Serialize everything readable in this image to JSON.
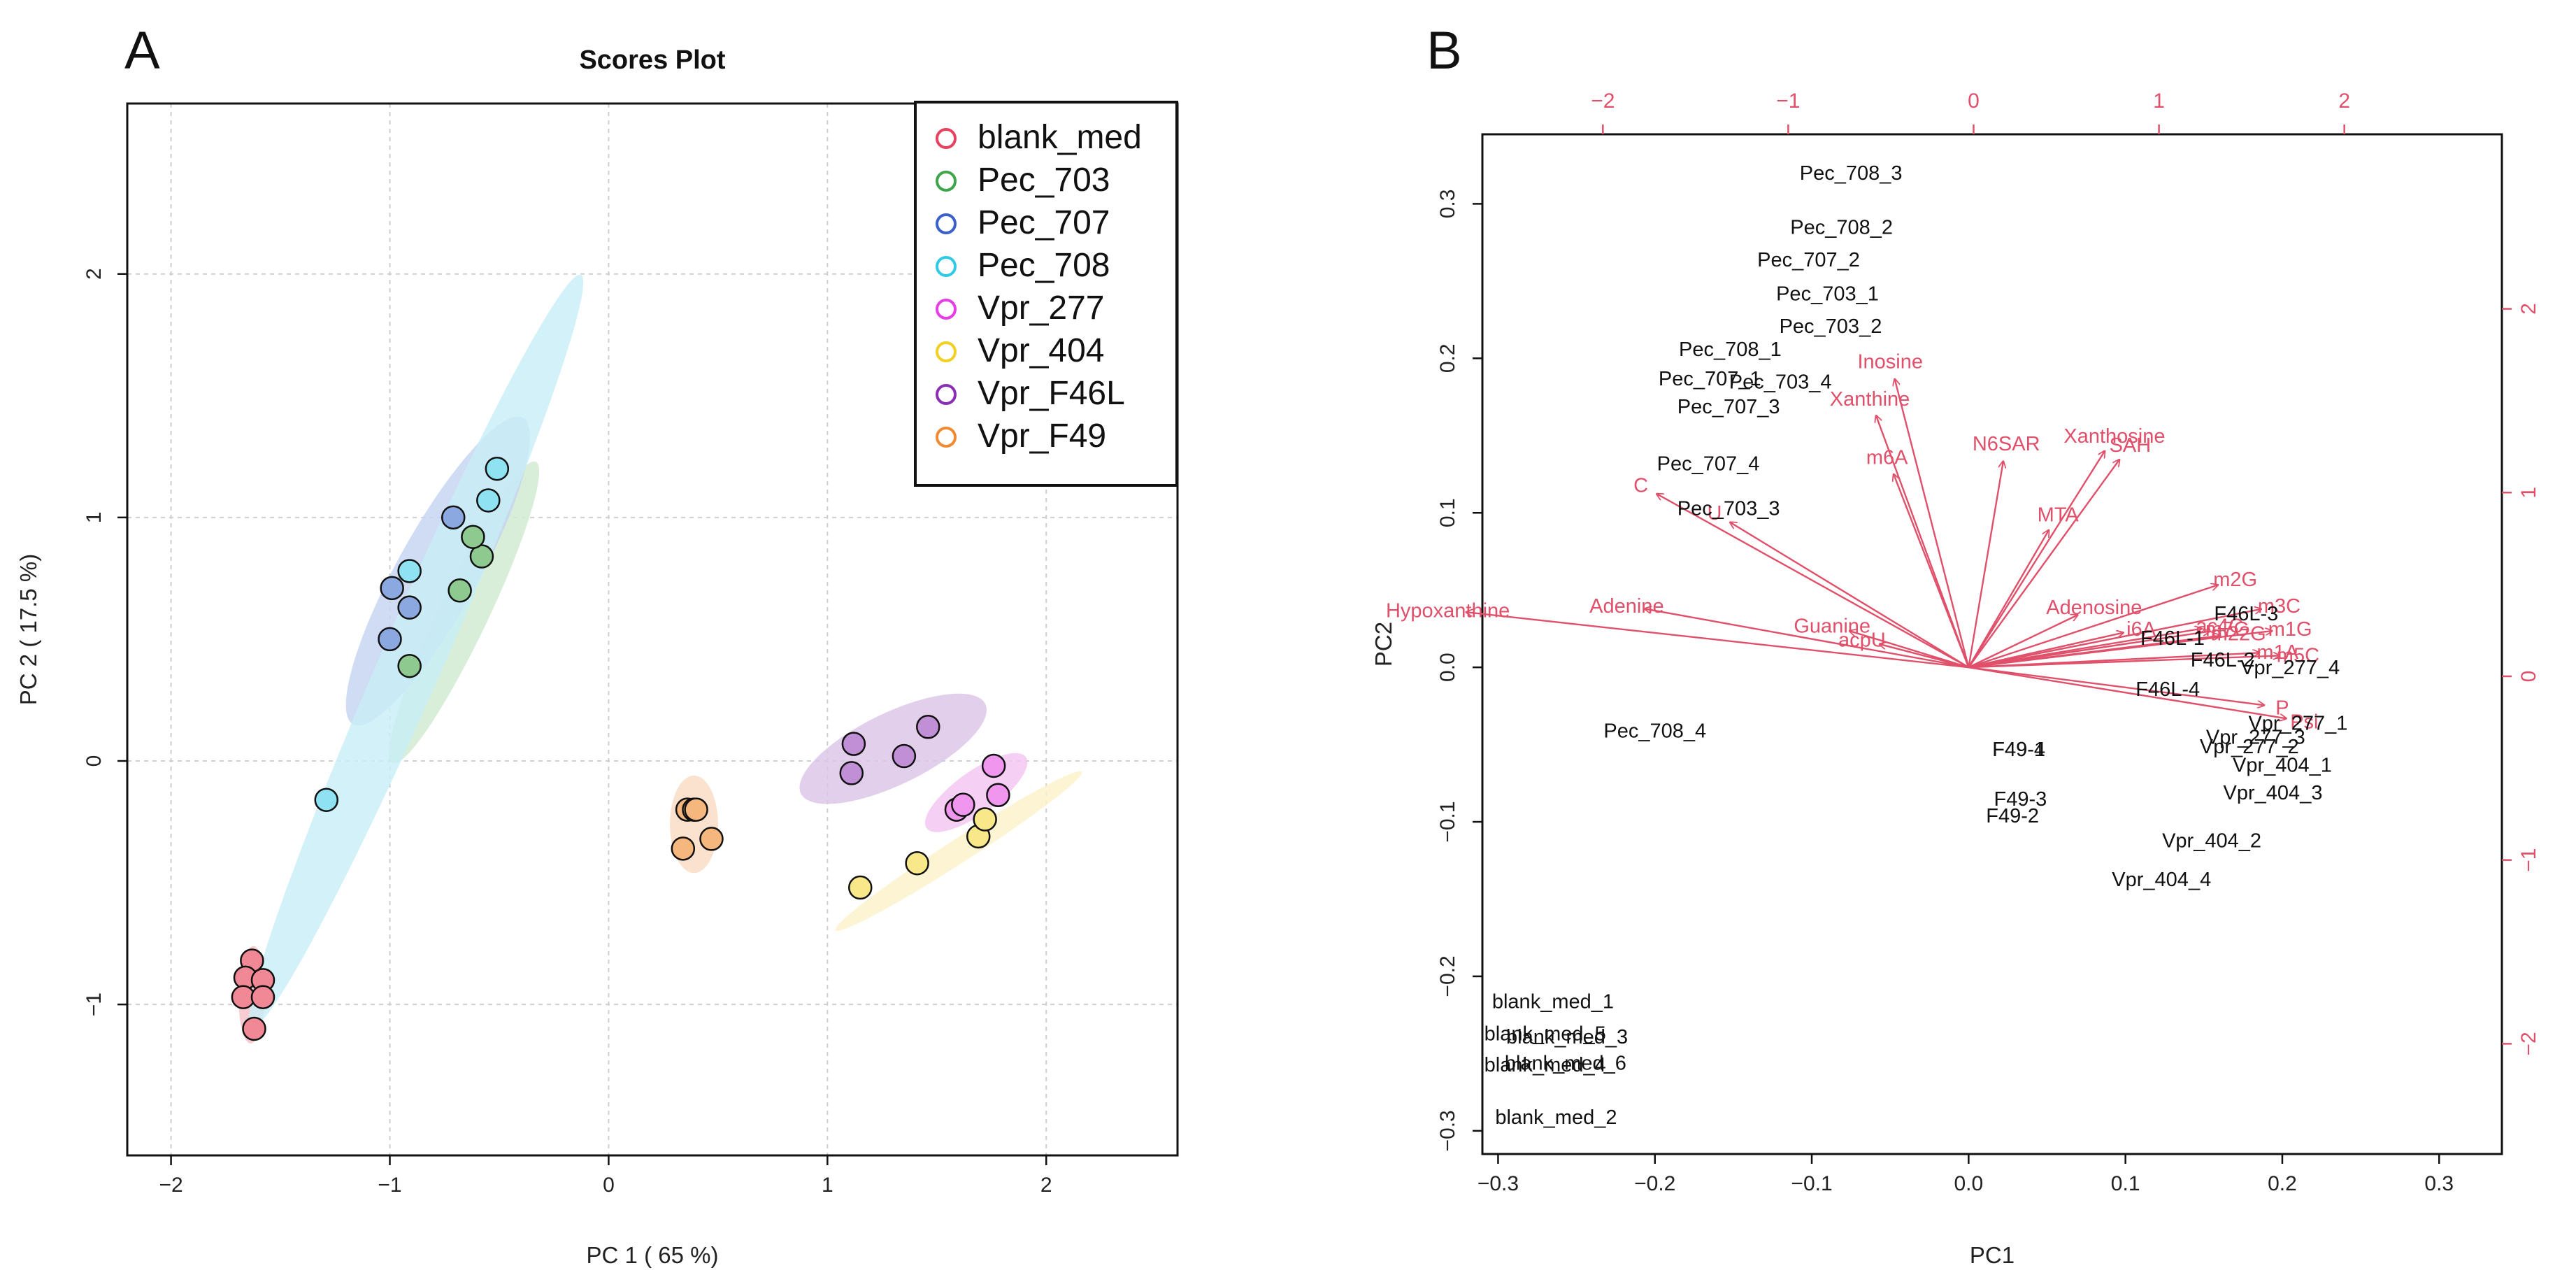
{
  "panels": {
    "a_label": "A",
    "b_label": "B"
  },
  "chart_data": [
    {
      "type": "scatter",
      "title": "Scores Plot",
      "xlabel": "PC 1 ( 65 %)",
      "ylabel": "PC 2 ( 17.5 %)",
      "xlim": [
        -2.2,
        2.6
      ],
      "ylim": [
        -1.62,
        2.7
      ],
      "xticks": [
        -2,
        -1,
        0,
        1,
        2
      ],
      "yticks": [
        -1,
        0,
        1,
        2
      ],
      "grid": true,
      "legend_position": "top-right",
      "series": [
        {
          "name": "blank_med",
          "color": "#e8415f",
          "fill": "#f08896",
          "ellipse_fill": "#f4c2c8",
          "ellipse": {
            "center": [
              -1.63,
              -0.96
            ],
            "semi_major": 0.2,
            "semi_minor": 0.06,
            "angle_deg": 88
          },
          "points": [
            [
              -1.63,
              -0.82
            ],
            [
              -1.66,
              -0.89
            ],
            [
              -1.58,
              -0.9
            ],
            [
              -1.67,
              -0.97
            ],
            [
              -1.58,
              -0.97
            ],
            [
              -1.62,
              -1.1
            ]
          ]
        },
        {
          "name": "Pec_703",
          "color": "#3ea54a",
          "fill": "#8ec98f",
          "ellipse_fill": "#cfeacf",
          "ellipse": {
            "center": [
              -0.66,
              0.61
            ],
            "semi_major": 0.7,
            "semi_minor": 0.11,
            "angle_deg": 62
          },
          "points": [
            [
              -0.91,
              0.39
            ],
            [
              -0.68,
              0.7
            ],
            [
              -0.58,
              0.84
            ],
            [
              -0.62,
              0.92
            ]
          ]
        },
        {
          "name": "Pec_707",
          "color": "#3a60cc",
          "fill": "#8ba8e0",
          "ellipse_fill": "#c5d4f1",
          "ellipse": {
            "center": [
              -0.78,
              0.78
            ],
            "semi_major": 0.74,
            "semi_minor": 0.18,
            "angle_deg": 58
          },
          "points": [
            [
              -1.0,
              0.5
            ],
            [
              -0.99,
              0.71
            ],
            [
              -0.91,
              0.63
            ],
            [
              -0.71,
              1.0
            ]
          ]
        },
        {
          "name": "Pec_708",
          "color": "#30c9e6",
          "fill": "#8ee2f2",
          "ellipse_fill": "#c8eef7",
          "ellipse": {
            "center": [
              -0.88,
              0.45
            ],
            "semi_major": 1.72,
            "semi_minor": 0.14,
            "angle_deg": 64
          },
          "points": [
            [
              -1.29,
              -0.16
            ],
            [
              -0.91,
              0.78
            ],
            [
              -0.55,
              1.07
            ],
            [
              -0.51,
              1.2
            ]
          ]
        },
        {
          "name": "Vpr_277",
          "color": "#e63de6",
          "fill": "#f096ee",
          "ellipse_fill": "#f3c6f1",
          "ellipse": {
            "center": [
              1.68,
              -0.13
            ],
            "semi_major": 0.27,
            "semi_minor": 0.09,
            "angle_deg": 32
          },
          "points": [
            [
              1.59,
              -0.2
            ],
            [
              1.62,
              -0.18
            ],
            [
              1.76,
              -0.02
            ],
            [
              1.78,
              -0.14
            ]
          ]
        },
        {
          "name": "Vpr_404",
          "color": "#f2d020",
          "fill": "#f8e88a",
          "ellipse_fill": "#fbf1c8",
          "ellipse": {
            "center": [
              1.6,
              -0.37
            ],
            "semi_major": 0.65,
            "semi_minor": 0.05,
            "angle_deg": 30
          },
          "points": [
            [
              1.15,
              -0.52
            ],
            [
              1.41,
              -0.42
            ],
            [
              1.69,
              -0.31
            ],
            [
              1.72,
              -0.24
            ]
          ]
        },
        {
          "name": "Vpr_F46L",
          "color": "#8a2fb5",
          "fill": "#c08fd6",
          "ellipse_fill": "#dcc5e8",
          "ellipse": {
            "center": [
              1.3,
              0.05
            ],
            "semi_major": 0.46,
            "semi_minor": 0.15,
            "angle_deg": 23
          },
          "points": [
            [
              1.11,
              -0.05
            ],
            [
              1.12,
              0.07
            ],
            [
              1.35,
              0.02
            ],
            [
              1.46,
              0.14
            ]
          ]
        },
        {
          "name": "Vpr_F49",
          "color": "#f08b32",
          "fill": "#f5b77e",
          "ellipse_fill": "#f9dcc4",
          "ellipse": {
            "center": [
              0.39,
              -0.26
            ],
            "semi_major": 0.2,
            "semi_minor": 0.11,
            "angle_deg": 90
          },
          "points": [
            [
              0.36,
              -0.2
            ],
            [
              0.39,
              -0.2
            ],
            [
              0.4,
              -0.2
            ],
            [
              0.34,
              -0.36
            ],
            [
              0.47,
              -0.32
            ]
          ]
        }
      ]
    },
    {
      "type": "biplot",
      "xlabel": "PC1",
      "ylabel": "PC2",
      "xlim": [
        -0.31,
        0.34
      ],
      "ylim": [
        -0.315,
        0.345
      ],
      "xticks": [
        -0.3,
        -0.2,
        -0.1,
        0.0,
        0.1,
        0.2,
        0.3
      ],
      "xtick_labels": [
        "−0.3",
        "−0.2",
        "−0.1",
        "0.0",
        "0.1",
        "0.2",
        "0.3"
      ],
      "yticks": [
        -0.3,
        -0.2,
        -0.1,
        0.0,
        0.1,
        0.2,
        0.3
      ],
      "ytick_labels": [
        "−0.3",
        "−0.2",
        "−0.1",
        "0.0",
        "0.1",
        "0.2",
        "0.3"
      ],
      "top_ticks": [
        -2,
        -1,
        0,
        1,
        2
      ],
      "top_tick_labels": [
        "−2",
        "−1",
        "0",
        "1",
        "2"
      ],
      "top_axis_range": [
        -2.65,
        2.85
      ],
      "right_ticks": [
        -2,
        -1,
        0,
        1,
        2
      ],
      "right_tick_labels": [
        "−2",
        "−1",
        "0",
        "1",
        "2"
      ],
      "right_axis_range": [
        -2.6,
        2.95
      ],
      "sample_color": "#111111",
      "variable_color": "#e0506a",
      "samples": [
        {
          "label": "Pec_708_3",
          "x": -0.075,
          "y": 0.32
        },
        {
          "label": "Pec_708_2",
          "x": -0.081,
          "y": 0.285
        },
        {
          "label": "Pec_707_2",
          "x": -0.102,
          "y": 0.264
        },
        {
          "label": "Pec_703_1",
          "x": -0.09,
          "y": 0.242
        },
        {
          "label": "Pec_703_2",
          "x": -0.088,
          "y": 0.221
        },
        {
          "label": "Pec_708_1",
          "x": -0.152,
          "y": 0.206
        },
        {
          "label": "Pec_703_4",
          "x": -0.12,
          "y": 0.185
        },
        {
          "label": "Pec_707_1",
          "x": -0.165,
          "y": 0.187
        },
        {
          "label": "Pec_707_3",
          "x": -0.153,
          "y": 0.169
        },
        {
          "label": "Pec_707_4",
          "x": -0.166,
          "y": 0.132
        },
        {
          "label": "Pec_703_3",
          "x": -0.153,
          "y": 0.103
        },
        {
          "label": "Pec_708_4",
          "x": -0.2,
          "y": -0.041
        },
        {
          "label": "F46L-3",
          "x": 0.177,
          "y": 0.035
        },
        {
          "label": "F46L-1",
          "x": 0.13,
          "y": 0.019
        },
        {
          "label": "F46L-2",
          "x": 0.162,
          "y": 0.005
        },
        {
          "label": "F46L-4",
          "x": 0.127,
          "y": -0.014
        },
        {
          "label": "Vpr_277_4",
          "x": 0.205,
          "y": 0.0
        },
        {
          "label": "Vpr_277_1",
          "x": 0.21,
          "y": -0.036
        },
        {
          "label": "Vpr_277_3",
          "x": 0.183,
          "y": -0.045
        },
        {
          "label": "Vpr_277_2",
          "x": 0.179,
          "y": -0.051
        },
        {
          "label": "Vpr_404_1",
          "x": 0.2,
          "y": -0.063
        },
        {
          "label": "Vpr_404_3",
          "x": 0.194,
          "y": -0.081
        },
        {
          "label": "Vpr_404_2",
          "x": 0.155,
          "y": -0.112
        },
        {
          "label": "Vpr_404_4",
          "x": 0.123,
          "y": -0.137
        },
        {
          "label": "F49-4",
          "x": 0.032,
          "y": -0.053
        },
        {
          "label": "F49-1",
          "x": 0.032,
          "y": -0.053
        },
        {
          "label": "F49-3",
          "x": 0.033,
          "y": -0.085
        },
        {
          "label": "F49-2",
          "x": 0.028,
          "y": -0.096
        },
        {
          "label": "blank_med_1",
          "x": -0.265,
          "y": -0.216
        },
        {
          "label": "blank_med_5",
          "x": -0.27,
          "y": -0.237
        },
        {
          "label": "blank_med_3",
          "x": -0.256,
          "y": -0.239
        },
        {
          "label": "blank_med_4",
          "x": -0.27,
          "y": -0.257
        },
        {
          "label": "blank_med_6",
          "x": -0.257,
          "y": -0.256
        },
        {
          "label": "blank_med_2",
          "x": -0.263,
          "y": -0.291
        }
      ],
      "variables": [
        {
          "label": "Inosine",
          "x": -0.05,
          "y": 0.198
        },
        {
          "label": "Xanthine",
          "x": -0.063,
          "y": 0.174
        },
        {
          "label": "m6A",
          "x": -0.052,
          "y": 0.136
        },
        {
          "label": "N6SAR",
          "x": 0.024,
          "y": 0.145
        },
        {
          "label": "Xanthosine",
          "x": 0.093,
          "y": 0.15
        },
        {
          "label": "SAH",
          "x": 0.103,
          "y": 0.144
        },
        {
          "label": "MTA",
          "x": 0.057,
          "y": 0.099
        },
        {
          "label": "C",
          "x": -0.209,
          "y": 0.118
        },
        {
          "label": "U",
          "x": -0.162,
          "y": 0.1
        },
        {
          "label": "Hypoxanthine",
          "x": -0.332,
          "y": 0.037
        },
        {
          "label": "Adenine",
          "x": -0.218,
          "y": 0.04
        },
        {
          "label": "Guanine",
          "x": -0.087,
          "y": 0.027
        },
        {
          "label": "acpU",
          "x": -0.068,
          "y": 0.018
        },
        {
          "label": "Adenosine",
          "x": 0.08,
          "y": 0.039
        },
        {
          "label": "m2G",
          "x": 0.17,
          "y": 0.057
        },
        {
          "label": "m3C",
          "x": 0.198,
          "y": 0.04
        },
        {
          "label": "i6A",
          "x": 0.11,
          "y": 0.025
        },
        {
          "label": "m7G",
          "x": 0.165,
          "y": 0.025
        },
        {
          "label": "ac4C",
          "x": 0.16,
          "y": 0.027
        },
        {
          "label": "m22G",
          "x": 0.172,
          "y": 0.022
        },
        {
          "label": "m1G",
          "x": 0.205,
          "y": 0.025
        },
        {
          "label": "m1A",
          "x": 0.197,
          "y": 0.01
        },
        {
          "label": "m5C",
          "x": 0.21,
          "y": 0.008
        },
        {
          "label": "P",
          "x": 0.2,
          "y": -0.026
        },
        {
          "label": "Psi",
          "x": 0.214,
          "y": -0.035
        }
      ]
    }
  ]
}
